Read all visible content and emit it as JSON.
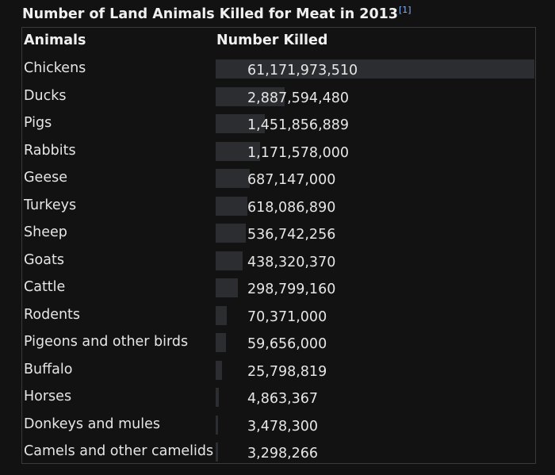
{
  "caption": {
    "title": "Number of Land Animals Killed for Meat in 2013",
    "ref": "[1]"
  },
  "chart_data": {
    "type": "table",
    "title": "Number of Land Animals Killed for Meat in 2013",
    "columns": [
      "Animals",
      "Number Killed"
    ],
    "rows": [
      {
        "label": "Chickens",
        "value": 61171973510,
        "display": "61,171,973,510"
      },
      {
        "label": "Ducks",
        "value": 2887594480,
        "display": "2,887,594,480"
      },
      {
        "label": "Pigs",
        "value": 1451856889,
        "display": "1,451,856,889"
      },
      {
        "label": "Rabbits",
        "value": 1171578000,
        "display": "1,171,578,000"
      },
      {
        "label": "Geese",
        "value": 687147000,
        "display": "687,147,000"
      },
      {
        "label": "Turkeys",
        "value": 618086890,
        "display": "618,086,890"
      },
      {
        "label": "Sheep",
        "value": 536742256,
        "display": "536,742,256"
      },
      {
        "label": "Goats",
        "value": 438320370,
        "display": "438,320,370"
      },
      {
        "label": "Cattle",
        "value": 298799160,
        "display": "298,799,160"
      },
      {
        "label": "Rodents",
        "value": 70371000,
        "display": "70,371,000"
      },
      {
        "label": "Pigeons and other birds",
        "value": 59656000,
        "display": "59,656,000"
      },
      {
        "label": "Buffalo",
        "value": 25798819,
        "display": "25,798,819"
      },
      {
        "label": "Horses",
        "value": 4863367,
        "display": "4,863,367"
      },
      {
        "label": "Donkeys and mules",
        "value": 3478300,
        "display": "3,478,300"
      },
      {
        "label": "Camels and other camelids",
        "value": 3298266,
        "display": "3,298,266"
      }
    ],
    "bar_scale": "sqrt",
    "colors": {
      "background": "#121212",
      "bar": "#2b2d30",
      "text": "#e6e6e6",
      "border": "#3a3a3a",
      "ref_link": "#8ab4f8"
    }
  }
}
